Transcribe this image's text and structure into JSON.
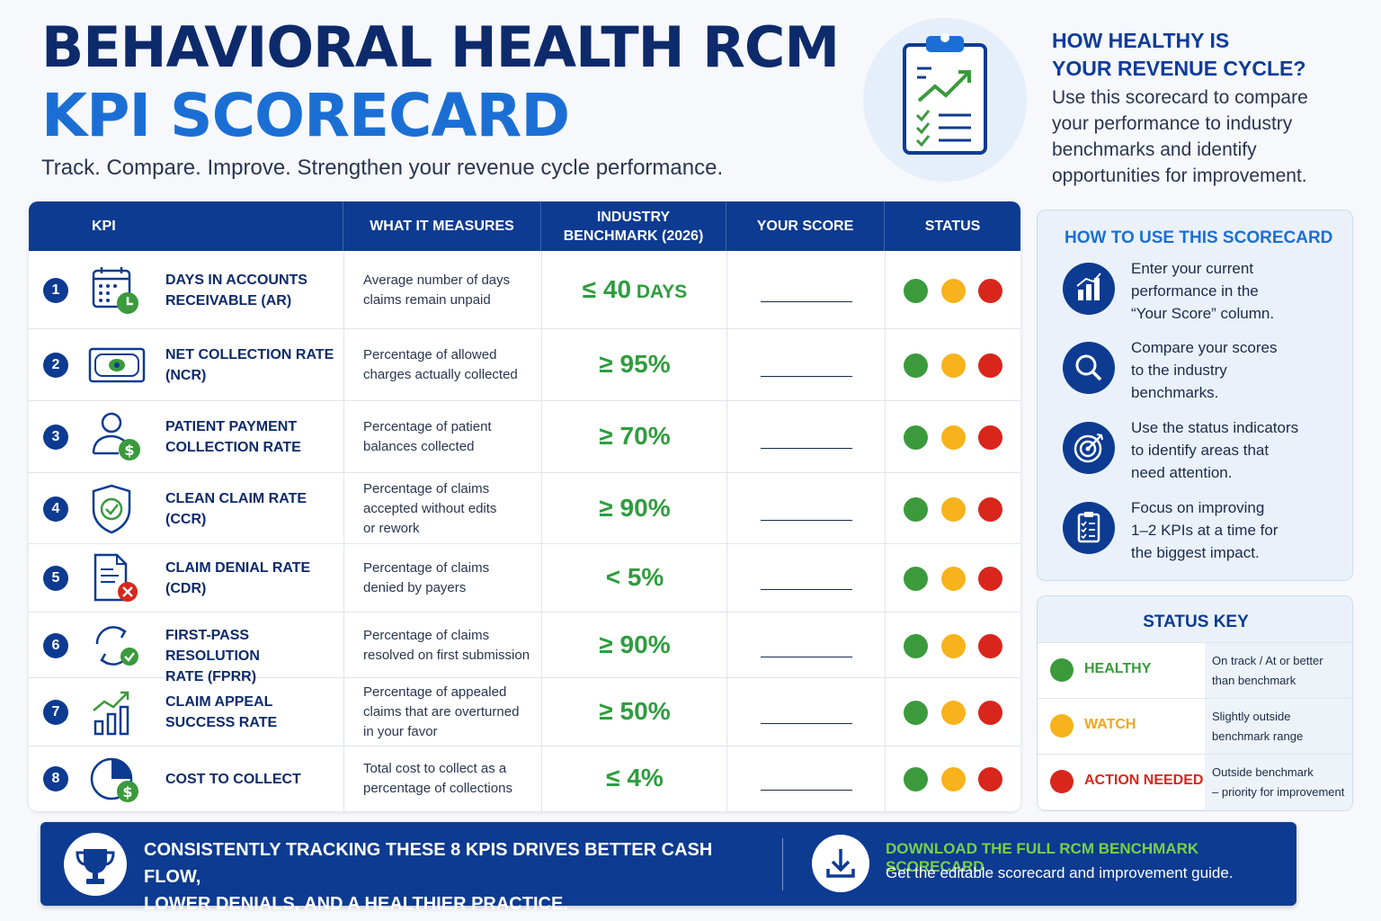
{
  "header": {
    "title_line1": "BEHAVIORAL HEALTH RCM",
    "title_line2": "KPI SCORECARD",
    "subtitle": "Track. Compare. Improve. Strengthen your revenue cycle performance.",
    "hero_icon": "clipboard-chart-icon"
  },
  "intro": {
    "heading_line1": "HOW HEALTHY IS",
    "heading_line2": "YOUR REVENUE CYCLE?",
    "body_lines": [
      "Use this scorecard to compare",
      "your performance to industry",
      "benchmarks and identify",
      "opportunities for improvement."
    ]
  },
  "table": {
    "headers": {
      "kpi": "KPI",
      "measures": "WHAT IT MEASURES",
      "benchmark_line1": "INDUSTRY",
      "benchmark_line2": "BENCHMARK (2026)",
      "score": "YOUR SCORE",
      "status": "STATUS"
    },
    "rows": [
      {
        "num": "1",
        "icon": "calendar-clock-icon",
        "name_lines": [
          "DAYS IN ACCOUNTS",
          "RECEIVABLE (AR)"
        ],
        "measure_lines": [
          "Average number of days",
          "claims remain unpaid"
        ],
        "bench": "≤ 40",
        "unit": " DAYS"
      },
      {
        "num": "2",
        "icon": "money-bill-icon",
        "name_lines": [
          "NET COLLECTION RATE",
          "(NCR)"
        ],
        "measure_lines": [
          "Percentage of allowed",
          "charges actually collected"
        ],
        "bench": "≥ 95%",
        "unit": ""
      },
      {
        "num": "3",
        "icon": "patient-dollar-icon",
        "name_lines": [
          "PATIENT PAYMENT",
          "COLLECTION RATE"
        ],
        "measure_lines": [
          "Percentage of patient",
          "balances collected"
        ],
        "bench": "≥ 70%",
        "unit": ""
      },
      {
        "num": "4",
        "icon": "shield-check-icon",
        "name_lines": [
          "CLEAN CLAIM RATE",
          "(CCR)"
        ],
        "measure_lines": [
          "Percentage of claims",
          "accepted without edits",
          "or rework"
        ],
        "bench": "≥ 90%",
        "unit": ""
      },
      {
        "num": "5",
        "icon": "document-x-icon",
        "name_lines": [
          "CLAIM DENIAL RATE",
          "(CDR)"
        ],
        "measure_lines": [
          "Percentage of claims",
          "denied by payers"
        ],
        "bench": "< 5%",
        "unit": ""
      },
      {
        "num": "6",
        "icon": "refresh-check-icon",
        "name_lines": [
          "FIRST-PASS RESOLUTION",
          "RATE (FPRR)"
        ],
        "measure_lines": [
          "Percentage of claims",
          "resolved on first submission"
        ],
        "bench": "≥ 90%",
        "unit": ""
      },
      {
        "num": "7",
        "icon": "bar-chart-up-icon",
        "name_lines": [
          "CLAIM APPEAL",
          "SUCCESS RATE"
        ],
        "measure_lines": [
          "Percentage of appealed",
          "claims that are overturned",
          "in your favor"
        ],
        "bench": "≥ 50%",
        "unit": ""
      },
      {
        "num": "8",
        "icon": "pie-dollar-icon",
        "name_lines": [
          "COST TO COLLECT"
        ],
        "measure_lines": [
          "Total cost to collect as a",
          "percentage of collections"
        ],
        "bench": "≤ 4%",
        "unit": ""
      }
    ]
  },
  "howto": {
    "title": "HOW TO USE THIS SCORECARD",
    "steps": [
      {
        "icon": "bar-chart-icon",
        "lines": [
          "Enter your current",
          "performance in the",
          "“Your Score” column."
        ]
      },
      {
        "icon": "search-icon",
        "lines": [
          "Compare your scores",
          "to the industry",
          "benchmarks."
        ]
      },
      {
        "icon": "target-icon",
        "lines": [
          "Use the status indicators",
          "to identify areas that",
          "need attention."
        ]
      },
      {
        "icon": "checklist-icon",
        "lines": [
          "Focus on improving",
          "1–2 KPIs at a time for",
          "the biggest impact."
        ]
      }
    ]
  },
  "status_key": {
    "title": "STATUS KEY",
    "items": [
      {
        "label": "HEALTHY",
        "color": "#3a9a3c",
        "label_color": "#3a9a3c",
        "desc_lines": [
          "On track / At or better",
          "than benchmark"
        ]
      },
      {
        "label": "WATCH",
        "color": "#f7b21c",
        "label_color": "#f2a516",
        "desc_lines": [
          "Slightly outside",
          "benchmark range"
        ]
      },
      {
        "label": "ACTION NEEDED",
        "color": "#d8261c",
        "label_color": "#d8261c",
        "desc_lines": [
          "Outside benchmark",
          "– priority for improvement"
        ]
      }
    ]
  },
  "banner": {
    "icon": "trophy-icon",
    "text_line1": "CONSISTENTLY TRACKING THESE 8 KPIS DRIVES BETTER CASH FLOW,",
    "text_line2": "LOWER DENIALS, AND A HEALTHIER PRACTICE.",
    "download_icon": "download-icon",
    "download_title": "DOWNLOAD THE FULL RCM BENCHMARK SCORECARD",
    "download_sub": "Get the editable scorecard and improvement guide."
  },
  "colors": {
    "navy": "#0d3b91",
    "blue": "#1b6fd4",
    "green": "#3a9a3c",
    "yellow": "#f7b21c",
    "red": "#d8261c"
  }
}
